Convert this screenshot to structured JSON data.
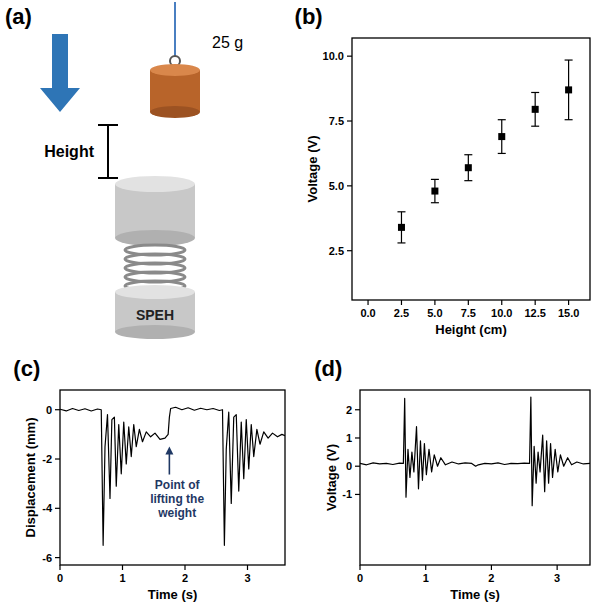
{
  "diagram": {
    "panel": "(a)",
    "mass": "25 g",
    "height": "Height",
    "device": "SPEH"
  },
  "chart_data": [
    {
      "type": "scatter",
      "panel": "(b)",
      "x_label": "Height (cm)",
      "y_label": "Voltage (V)",
      "x": [
        2.5,
        5,
        7.5,
        10,
        12.5,
        15
      ],
      "values": [
        3.4,
        4.8,
        5.7,
        6.9,
        7.95,
        8.7
      ],
      "errors": [
        0.6,
        0.45,
        0.5,
        0.65,
        0.65,
        1.15
      ],
      "color": "#000000",
      "marker": "square",
      "grid": false,
      "xlim": [
        -1.2,
        16.6
      ],
      "xticks": [
        {
          "value": 0,
          "label": "0.0"
        },
        {
          "value": 2.5,
          "label": "2.5"
        },
        {
          "value": 5,
          "label": "5.0"
        },
        {
          "value": 7.5,
          "label": "7.5"
        },
        {
          "value": 10,
          "label": "10.0"
        },
        {
          "value": 12.5,
          "label": "12.5"
        },
        {
          "value": 15,
          "label": "15.0"
        }
      ],
      "ylim": [
        0.6,
        10.7
      ],
      "yticks": [
        {
          "value": 2.5,
          "label": "2.5"
        },
        {
          "value": 5,
          "label": "5.0"
        },
        {
          "value": 7.5,
          "label": "7.5"
        },
        {
          "value": 10,
          "label": "10.0"
        }
      ]
    },
    {
      "type": "line",
      "panel": "(c)",
      "x_label": "Time (s)",
      "y_label": "Displacement (mm)",
      "x": [
        0,
        0.1,
        0.2,
        0.3,
        0.4,
        0.5,
        0.6,
        0.66,
        0.69,
        0.72,
        0.76,
        0.8,
        0.83,
        0.87,
        0.9,
        0.94,
        0.98,
        1.02,
        1.06,
        1.1,
        1.14,
        1.18,
        1.22,
        1.27,
        1.32,
        1.38,
        1.45,
        1.52,
        1.6,
        1.68,
        1.73,
        1.75,
        1.77,
        1.85,
        1.95,
        2.05,
        2.15,
        2.25,
        2.35,
        2.45,
        2.55,
        2.6,
        2.63,
        2.66,
        2.7,
        2.74,
        2.78,
        2.82,
        2.86,
        2.9,
        2.94,
        2.98,
        3.02,
        3.06,
        3.1,
        3.15,
        3.2,
        3.26,
        3.33,
        3.4,
        3.48,
        3.55,
        3.6
      ],
      "values": [
        0.02,
        -0.05,
        0.05,
        -0.03,
        0.04,
        -0.05,
        0.03,
        0.0,
        -5.5,
        -1.5,
        -0.2,
        -3.6,
        -0.4,
        -0.3,
        -3.1,
        -0.6,
        -2.6,
        -0.5,
        -2.2,
        -0.7,
        -1.9,
        -0.6,
        -1.5,
        -0.8,
        -1.3,
        -0.9,
        -1.1,
        -0.95,
        -1.2,
        -1.15,
        -1.0,
        -0.3,
        0.05,
        0.1,
        0.0,
        0.08,
        -0.02,
        0.06,
        0.0,
        0.05,
        -0.03,
        0.0,
        -5.5,
        -1.6,
        -0.1,
        -3.8,
        -0.3,
        -0.2,
        -3.3,
        -0.5,
        -2.8,
        -0.4,
        -2.4,
        -0.6,
        -1.9,
        -0.8,
        -1.4,
        -0.9,
        -1.15,
        -0.95,
        -1.1,
        -1.0,
        -1.05
      ],
      "color": "#000000",
      "grid": false,
      "xlim": [
        0,
        3.6
      ],
      "xticks": [
        0,
        1,
        2,
        3
      ],
      "ylim": [
        -6.3,
        0.8
      ],
      "yticks": [
        -6,
        -4,
        -2,
        0
      ],
      "annotations": [
        {
          "text": "Point of lifting the weight",
          "x": 1.75,
          "y": -1.25
        }
      ]
    },
    {
      "type": "line",
      "panel": "(d)",
      "x_label": "Time (s)",
      "y_label": "Voltage (V)",
      "x": [
        0,
        0.1,
        0.2,
        0.3,
        0.4,
        0.5,
        0.6,
        0.66,
        0.68,
        0.7,
        0.73,
        0.76,
        0.79,
        0.82,
        0.86,
        0.89,
        0.92,
        0.95,
        0.98,
        1.01,
        1.05,
        1.09,
        1.13,
        1.18,
        1.23,
        1.3,
        1.4,
        1.5,
        1.6,
        1.7,
        1.76,
        1.8,
        1.9,
        2.0,
        2.1,
        2.2,
        2.3,
        2.4,
        2.5,
        2.58,
        2.6,
        2.62,
        2.65,
        2.68,
        2.71,
        2.74,
        2.78,
        2.81,
        2.84,
        2.87,
        2.9,
        2.93,
        2.97,
        3.01,
        3.05,
        3.1,
        3.16,
        3.22,
        3.3,
        3.4,
        3.5
      ],
      "values": [
        0.1,
        0.05,
        0.12,
        0.08,
        0.1,
        0.06,
        0.11,
        0.1,
        2.4,
        -1.1,
        0.6,
        -0.4,
        0.5,
        -0.2,
        1.4,
        -0.8,
        0.9,
        -0.5,
        0.8,
        -0.3,
        0.6,
        -0.2,
        0.4,
        0.0,
        0.3,
        0.05,
        0.15,
        0.08,
        0.12,
        0.1,
        0.0,
        0.05,
        0.1,
        0.08,
        0.12,
        0.06,
        0.1,
        0.09,
        0.11,
        0.1,
        2.45,
        -1.4,
        0.7,
        -0.6,
        0.5,
        -0.2,
        1.1,
        -0.9,
        0.9,
        -0.6,
        0.8,
        -0.4,
        0.6,
        -0.2,
        0.4,
        0.0,
        0.3,
        0.05,
        0.15,
        0.08,
        0.1
      ],
      "color": "#000000",
      "grid": false,
      "xlim": [
        0,
        3.5
      ],
      "xticks": [
        0,
        1,
        2,
        3
      ],
      "ylim": [
        -3.5,
        2.7
      ],
      "yticks": [
        -1,
        0,
        1,
        2
      ]
    }
  ]
}
